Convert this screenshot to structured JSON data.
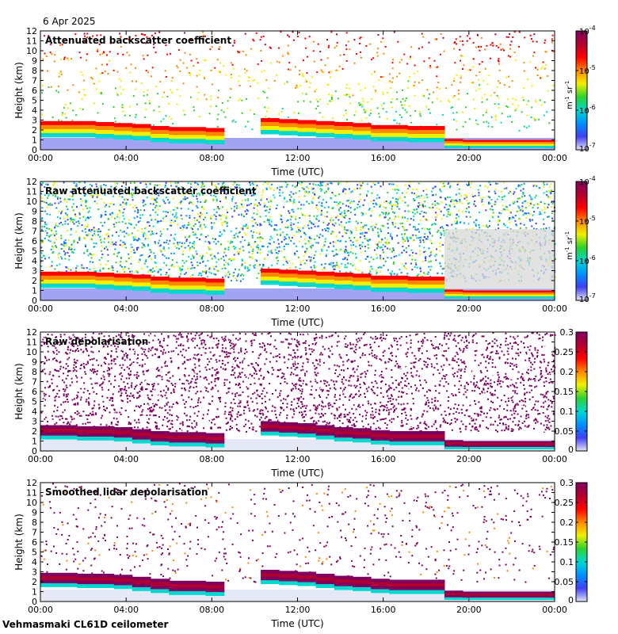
{
  "date": "6 Apr 2025",
  "footer": "Vehmasmaki CL61D ceilometer",
  "colors": {
    "jet": [
      "#e4e4f4",
      "#4040f0",
      "#0090ff",
      "#00d8d0",
      "#30d030",
      "#f0f000",
      "#ff8800",
      "#ff0000",
      "#b00030",
      "#800060"
    ]
  },
  "chart_data": [
    {
      "type": "heatmap",
      "title": "Attenuated backscatter coefficient",
      "xlabel": "Time (UTC)",
      "ylabel": "Height (km)",
      "x_ticks": [
        "00:00",
        "04:00",
        "08:00",
        "12:00",
        "16:00",
        "20:00",
        "00:00"
      ],
      "y_ticks": [
        "0",
        "1",
        "2",
        "3",
        "4",
        "5",
        "6",
        "7",
        "8",
        "9",
        "10",
        "11",
        "12"
      ],
      "ylim": [
        0,
        12
      ],
      "colorbar": {
        "scale": "log",
        "range": [
          1e-07,
          0.0001
        ],
        "tick_labels": [
          "10",
          "10",
          "10",
          "10"
        ],
        "tick_exps": [
          "-7",
          "-6",
          "-5",
          "-4"
        ],
        "unit": "m",
        "unit_exp": "-1",
        "unit2": "sr",
        "unit2_exp": "-1"
      },
      "cloud_top_km": [
        2.9,
        2.9,
        2.9,
        2.8,
        2.7,
        2.6,
        2.4,
        2.3,
        2.3,
        2.2,
        0,
        0,
        3.2,
        3.1,
        3.0,
        2.9,
        2.8,
        2.7,
        2.5,
        2.5,
        2.4,
        2.4,
        1.1,
        1.0,
        1.0,
        1.0,
        1.0,
        1.0
      ],
      "noise": "sparse"
    },
    {
      "type": "heatmap",
      "title": "Raw attenuated backscatter coefficient",
      "xlabel": "Time (UTC)",
      "ylabel": "Height (km)",
      "x_ticks": [
        "00:00",
        "04:00",
        "08:00",
        "12:00",
        "16:00",
        "20:00",
        "00:00"
      ],
      "y_ticks": [
        "0",
        "1",
        "2",
        "3",
        "4",
        "5",
        "6",
        "7",
        "8",
        "9",
        "10",
        "11",
        "12"
      ],
      "ylim": [
        0,
        12
      ],
      "colorbar": {
        "scale": "log",
        "range": [
          1e-07,
          0.0001
        ],
        "tick_labels": [
          "10",
          "10",
          "10",
          "10"
        ],
        "tick_exps": [
          "-7",
          "-6",
          "-5",
          "-4"
        ],
        "unit": "m",
        "unit_exp": "-1",
        "unit2": "sr",
        "unit2_exp": "-1"
      },
      "cloud_top_km": [
        2.9,
        2.9,
        2.9,
        2.8,
        2.7,
        2.6,
        2.4,
        2.3,
        2.3,
        2.2,
        0,
        0,
        3.2,
        3.1,
        3.0,
        2.9,
        2.8,
        2.7,
        2.5,
        2.5,
        2.4,
        2.4,
        1.1,
        1.0,
        1.0,
        1.0,
        1.0,
        1.0
      ],
      "noise": "dense"
    },
    {
      "type": "heatmap",
      "title": "Raw depolarisation",
      "xlabel": "Time (UTC)",
      "ylabel": "Height (km)",
      "x_ticks": [
        "00:00",
        "04:00",
        "08:00",
        "12:00",
        "16:00",
        "20:00",
        "00:00"
      ],
      "y_ticks": [
        "0",
        "1",
        "2",
        "3",
        "4",
        "5",
        "6",
        "7",
        "8",
        "9",
        "10",
        "11",
        "12"
      ],
      "ylim": [
        0,
        12
      ],
      "colorbar": {
        "scale": "linear",
        "range": [
          0,
          0.3
        ],
        "tick_labels": [
          "0",
          "0.05",
          "0.1",
          "0.15",
          "0.2",
          "0.25",
          "0.3"
        ]
      },
      "cloud_top_km": [
        2.6,
        2.6,
        2.5,
        2.5,
        2.4,
        2.2,
        2.0,
        1.9,
        1.9,
        1.8,
        0,
        0,
        3.0,
        2.9,
        2.8,
        2.6,
        2.4,
        2.3,
        2.1,
        2.0,
        2.0,
        2.0,
        1.1,
        1.0,
        1.0,
        1.0,
        1.0,
        1.0
      ],
      "noise": "depol-dense"
    },
    {
      "type": "heatmap",
      "title": "Smoothed lidar depolarisation",
      "xlabel": "Time (UTC)",
      "ylabel": "Height (km)",
      "x_ticks": [
        "00:00",
        "04:00",
        "08:00",
        "12:00",
        "16:00",
        "20:00",
        "00:00"
      ],
      "y_ticks": [
        "0",
        "1",
        "2",
        "3",
        "4",
        "5",
        "6",
        "7",
        "8",
        "9",
        "10",
        "11",
        "12"
      ],
      "ylim": [
        0,
        12
      ],
      "colorbar": {
        "scale": "linear",
        "range": [
          0,
          0.3
        ],
        "tick_labels": [
          "0",
          "0.05",
          "0.1",
          "0.15",
          "0.2",
          "0.25",
          "0.3"
        ]
      },
      "cloud_top_km": [
        2.9,
        2.9,
        2.8,
        2.8,
        2.7,
        2.5,
        2.3,
        2.1,
        2.1,
        2.0,
        0,
        0,
        3.2,
        3.1,
        3.0,
        2.8,
        2.6,
        2.5,
        2.3,
        2.2,
        2.2,
        2.2,
        1.1,
        1.0,
        1.0,
        1.0,
        1.0,
        1.0
      ],
      "noise": "depol-sparse"
    }
  ]
}
